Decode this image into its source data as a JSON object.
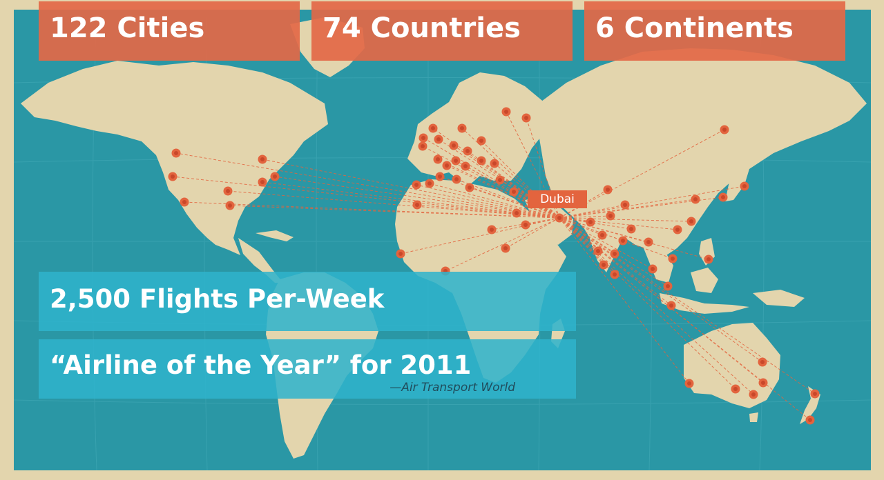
{
  "stats": {
    "cities": "122 Cities",
    "countries": "74 Countries",
    "continents": "6 Continents"
  },
  "banners": {
    "flights": "2,500 Flights Per-Week",
    "award": "“Airline of the Year” for 2011",
    "award_source": "—Air Transport World"
  },
  "hub": {
    "label": "Dubai"
  },
  "colors": {
    "ocean": "#2a97a5",
    "land": "#e3d5ad",
    "route_dot": "#e3643e",
    "stat_box": "#e36846",
    "banner": "#2eb3cc"
  }
}
